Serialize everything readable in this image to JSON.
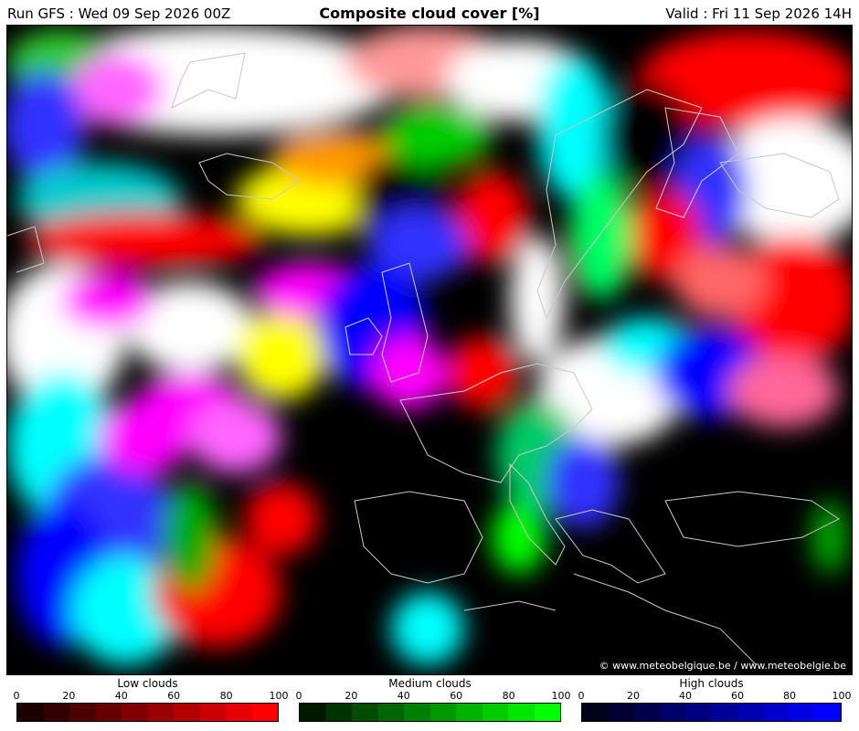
{
  "header": {
    "run": "Run GFS : Wed 09 Sep 2026 00Z",
    "title": "Composite cloud cover [%]",
    "valid": "Valid : Fri 11 Sep 2026 14H"
  },
  "map": {
    "credit": "© www.meteobelgique.be / www.meteobelgie.be",
    "background": "#000000",
    "coastline_color": "#c8c8c8"
  },
  "legends": [
    {
      "title": "Low clouds",
      "ticks": [
        "0",
        "20",
        "40",
        "60",
        "80",
        "100"
      ],
      "colors": [
        "#1a0000",
        "#330000",
        "#4d0000",
        "#660000",
        "#800000",
        "#990000",
        "#b30000",
        "#cc0000",
        "#e60000",
        "#ff0000"
      ]
    },
    {
      "title": "Medium clouds",
      "ticks": [
        "0",
        "20",
        "40",
        "60",
        "80",
        "100"
      ],
      "colors": [
        "#001a00",
        "#003300",
        "#004d00",
        "#006600",
        "#008000",
        "#009900",
        "#00b300",
        "#00cc00",
        "#00e600",
        "#00ff00"
      ]
    },
    {
      "title": "High clouds",
      "ticks": [
        "0",
        "20",
        "40",
        "60",
        "80",
        "100"
      ],
      "colors": [
        "#00001a",
        "#000033",
        "#00004d",
        "#000066",
        "#000080",
        "#000099",
        "#0000b3",
        "#0000cc",
        "#0000e6",
        "#0000ff"
      ]
    }
  ]
}
